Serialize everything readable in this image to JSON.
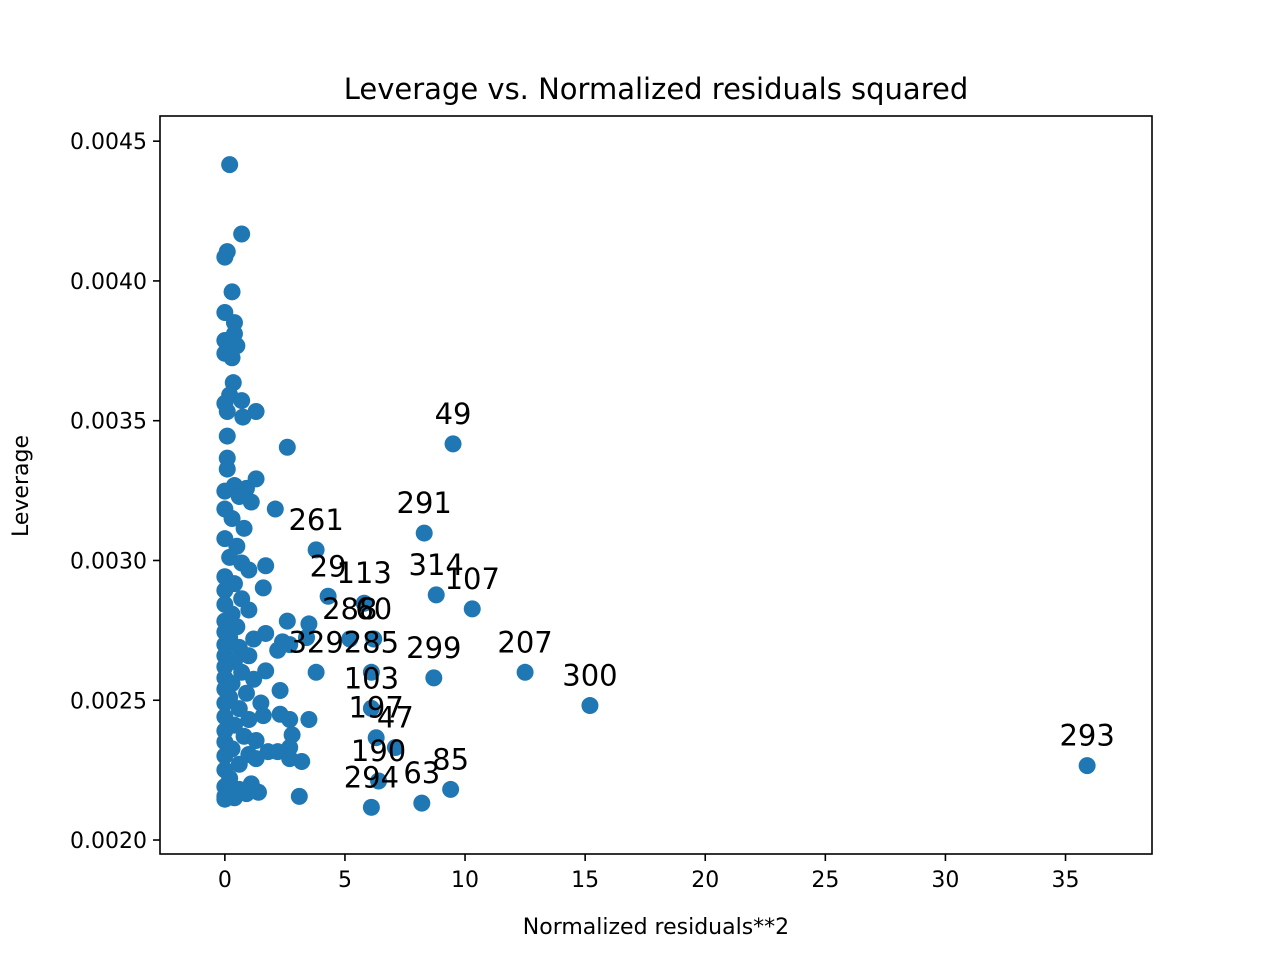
{
  "chart_data": {
    "type": "scatter",
    "title": "Leverage vs. Normalized residuals squared",
    "xlabel": "Normalized residuals**2",
    "ylabel": "Leverage",
    "xlim": [
      -2.7,
      38.6
    ],
    "ylim": [
      0.00195,
      0.00459
    ],
    "xticks": [
      0,
      5,
      10,
      15,
      20,
      25,
      30,
      35
    ],
    "xtick_labels": [
      "0",
      "5",
      "10",
      "15",
      "20",
      "25",
      "30",
      "35"
    ],
    "yticks": [
      0.002,
      0.0025,
      0.003,
      0.0035,
      0.004,
      0.0045
    ],
    "ytick_labels": [
      "0.0020",
      "0.0025",
      "0.0030",
      "0.0035",
      "0.0040",
      "0.0045"
    ],
    "grid": false,
    "point_color": "#1f77b4",
    "points": [
      {
        "x": 0.2,
        "y": 0.004416
      },
      {
        "x": 0.7,
        "y": 0.004168
      },
      {
        "x": 0.1,
        "y": 0.004105
      },
      {
        "x": 0.0,
        "y": 0.004085
      },
      {
        "x": 0.3,
        "y": 0.003961
      },
      {
        "x": 0.0,
        "y": 0.003887
      },
      {
        "x": 0.4,
        "y": 0.003851
      },
      {
        "x": 0.4,
        "y": 0.003811
      },
      {
        "x": 0.0,
        "y": 0.003787
      },
      {
        "x": 0.5,
        "y": 0.003768
      },
      {
        "x": 0.0,
        "y": 0.003741
      },
      {
        "x": 0.3,
        "y": 0.003725
      },
      {
        "x": 0.35,
        "y": 0.003636
      },
      {
        "x": 0.2,
        "y": 0.003592
      },
      {
        "x": 0.0,
        "y": 0.003562
      },
      {
        "x": 0.7,
        "y": 0.003572
      },
      {
        "x": 0.1,
        "y": 0.003533
      },
      {
        "x": 1.3,
        "y": 0.003533
      },
      {
        "x": 0.75,
        "y": 0.003513
      },
      {
        "x": 0.1,
        "y": 0.003445
      },
      {
        "x": 2.6,
        "y": 0.003405
      },
      {
        "x": 0.1,
        "y": 0.003366
      },
      {
        "x": 0.1,
        "y": 0.003327
      },
      {
        "x": 1.3,
        "y": 0.003292
      },
      {
        "x": 0.4,
        "y": 0.003268
      },
      {
        "x": 0.9,
        "y": 0.003258
      },
      {
        "x": 0.0,
        "y": 0.003248
      },
      {
        "x": 0.6,
        "y": 0.003229
      },
      {
        "x": 1.1,
        "y": 0.003209
      },
      {
        "x": 0.0,
        "y": 0.003184
      },
      {
        "x": 2.1,
        "y": 0.003184
      },
      {
        "x": 0.3,
        "y": 0.00315
      },
      {
        "x": 0.8,
        "y": 0.003115
      },
      {
        "x": 0.0,
        "y": 0.003078
      },
      {
        "x": 0.5,
        "y": 0.003051
      },
      {
        "x": 0.2,
        "y": 0.003011
      },
      {
        "x": 0.7,
        "y": 0.002991
      },
      {
        "x": 1.7,
        "y": 0.002981
      },
      {
        "x": 1.0,
        "y": 0.002966
      },
      {
        "x": 0.0,
        "y": 0.002942
      },
      {
        "x": 0.4,
        "y": 0.002917
      },
      {
        "x": 1.6,
        "y": 0.002902
      },
      {
        "x": 0.0,
        "y": 0.002893
      },
      {
        "x": 0.7,
        "y": 0.002863
      },
      {
        "x": 0.0,
        "y": 0.002843
      },
      {
        "x": 1.0,
        "y": 0.002823
      },
      {
        "x": 0.3,
        "y": 0.002808
      },
      {
        "x": 0.0,
        "y": 0.002783
      },
      {
        "x": 2.6,
        "y": 0.002783
      },
      {
        "x": 0.5,
        "y": 0.002763
      },
      {
        "x": 3.5,
        "y": 0.002773
      },
      {
        "x": 0.0,
        "y": 0.002744
      },
      {
        "x": 1.7,
        "y": 0.002739
      },
      {
        "x": 0.2,
        "y": 0.002724
      },
      {
        "x": 3.4,
        "y": 0.002724
      },
      {
        "x": 1.2,
        "y": 0.002719
      },
      {
        "x": 2.4,
        "y": 0.002709
      },
      {
        "x": 0.0,
        "y": 0.002699
      },
      {
        "x": 2.7,
        "y": 0.002699
      },
      {
        "x": 0.6,
        "y": 0.002689
      },
      {
        "x": 2.2,
        "y": 0.002679
      },
      {
        "x": 0.0,
        "y": 0.002659
      },
      {
        "x": 1.0,
        "y": 0.002659
      },
      {
        "x": 0.4,
        "y": 0.002639
      },
      {
        "x": 0.0,
        "y": 0.00262
      },
      {
        "x": 1.7,
        "y": 0.002605
      },
      {
        "x": 0.7,
        "y": 0.0026
      },
      {
        "x": 0.0,
        "y": 0.00258
      },
      {
        "x": 1.2,
        "y": 0.002575
      },
      {
        "x": 0.3,
        "y": 0.00256
      },
      {
        "x": 0.0,
        "y": 0.00254
      },
      {
        "x": 2.3,
        "y": 0.002535
      },
      {
        "x": 0.9,
        "y": 0.002525
      },
      {
        "x": 0.2,
        "y": 0.00251
      },
      {
        "x": 0.0,
        "y": 0.00249
      },
      {
        "x": 1.5,
        "y": 0.00249
      },
      {
        "x": 0.6,
        "y": 0.00247
      },
      {
        "x": 2.3,
        "y": 0.00245
      },
      {
        "x": 1.6,
        "y": 0.002445
      },
      {
        "x": 0.0,
        "y": 0.002441
      },
      {
        "x": 1.0,
        "y": 0.002431
      },
      {
        "x": 3.5,
        "y": 0.002431
      },
      {
        "x": 2.7,
        "y": 0.002431
      },
      {
        "x": 0.4,
        "y": 0.002411
      },
      {
        "x": 0.0,
        "y": 0.002391
      },
      {
        "x": 2.8,
        "y": 0.002376
      },
      {
        "x": 0.8,
        "y": 0.002371
      },
      {
        "x": 1.3,
        "y": 0.002356
      },
      {
        "x": 0.0,
        "y": 0.002351
      },
      {
        "x": 2.7,
        "y": 0.002331
      },
      {
        "x": 0.3,
        "y": 0.002326
      },
      {
        "x": 1.8,
        "y": 0.002316
      },
      {
        "x": 2.2,
        "y": 0.002316
      },
      {
        "x": 1.0,
        "y": 0.002306
      },
      {
        "x": 0.0,
        "y": 0.002301
      },
      {
        "x": 2.7,
        "y": 0.002291
      },
      {
        "x": 1.3,
        "y": 0.002291
      },
      {
        "x": 3.2,
        "y": 0.002281
      },
      {
        "x": 0.6,
        "y": 0.002271
      },
      {
        "x": 0.0,
        "y": 0.002251
      },
      {
        "x": 0.2,
        "y": 0.002221
      },
      {
        "x": 1.1,
        "y": 0.002201
      },
      {
        "x": 0.0,
        "y": 0.002191
      },
      {
        "x": 0.6,
        "y": 0.002181
      },
      {
        "x": 1.4,
        "y": 0.002171
      },
      {
        "x": 0.9,
        "y": 0.002166
      },
      {
        "x": 0.0,
        "y": 0.002156
      },
      {
        "x": 3.1,
        "y": 0.002156
      },
      {
        "x": 0.4,
        "y": 0.002151
      },
      {
        "x": 0.0,
        "y": 0.002146
      }
    ],
    "labeled_points": [
      {
        "label": "49",
        "x": 9.5,
        "y": 0.003417
      },
      {
        "label": "291",
        "x": 8.3,
        "y": 0.003098
      },
      {
        "label": "261",
        "x": 3.8,
        "y": 0.003038
      },
      {
        "label": "113",
        "x": 5.8,
        "y": 0.002847
      },
      {
        "label": "314",
        "x": 8.8,
        "y": 0.002877
      },
      {
        "label": "107",
        "x": 10.3,
        "y": 0.002827
      },
      {
        "label": "29",
        "x": 4.3,
        "y": 0.002872
      },
      {
        "label": "288",
        "x": 5.2,
        "y": 0.002719
      },
      {
        "label": "60",
        "x": 6.2,
        "y": 0.002719
      },
      {
        "label": "329",
        "x": 3.8,
        "y": 0.0026
      },
      {
        "label": "299",
        "x": 8.7,
        "y": 0.00258
      },
      {
        "label": "207",
        "x": 12.5,
        "y": 0.0026
      },
      {
        "label": "285",
        "x": 6.1,
        "y": 0.0026
      },
      {
        "label": "300",
        "x": 15.2,
        "y": 0.002481
      },
      {
        "label": "103",
        "x": 6.1,
        "y": 0.002471
      },
      {
        "label": "197",
        "x": 6.3,
        "y": 0.002366
      },
      {
        "label": "47",
        "x": 7.1,
        "y": 0.002331
      },
      {
        "label": "190",
        "x": 6.4,
        "y": 0.002211
      },
      {
        "label": "294",
        "x": 6.1,
        "y": 0.002117
      },
      {
        "label": "63",
        "x": 8.2,
        "y": 0.002132
      },
      {
        "label": "85",
        "x": 9.4,
        "y": 0.002181
      },
      {
        "label": "293",
        "x": 35.9,
        "y": 0.002266
      }
    ]
  }
}
